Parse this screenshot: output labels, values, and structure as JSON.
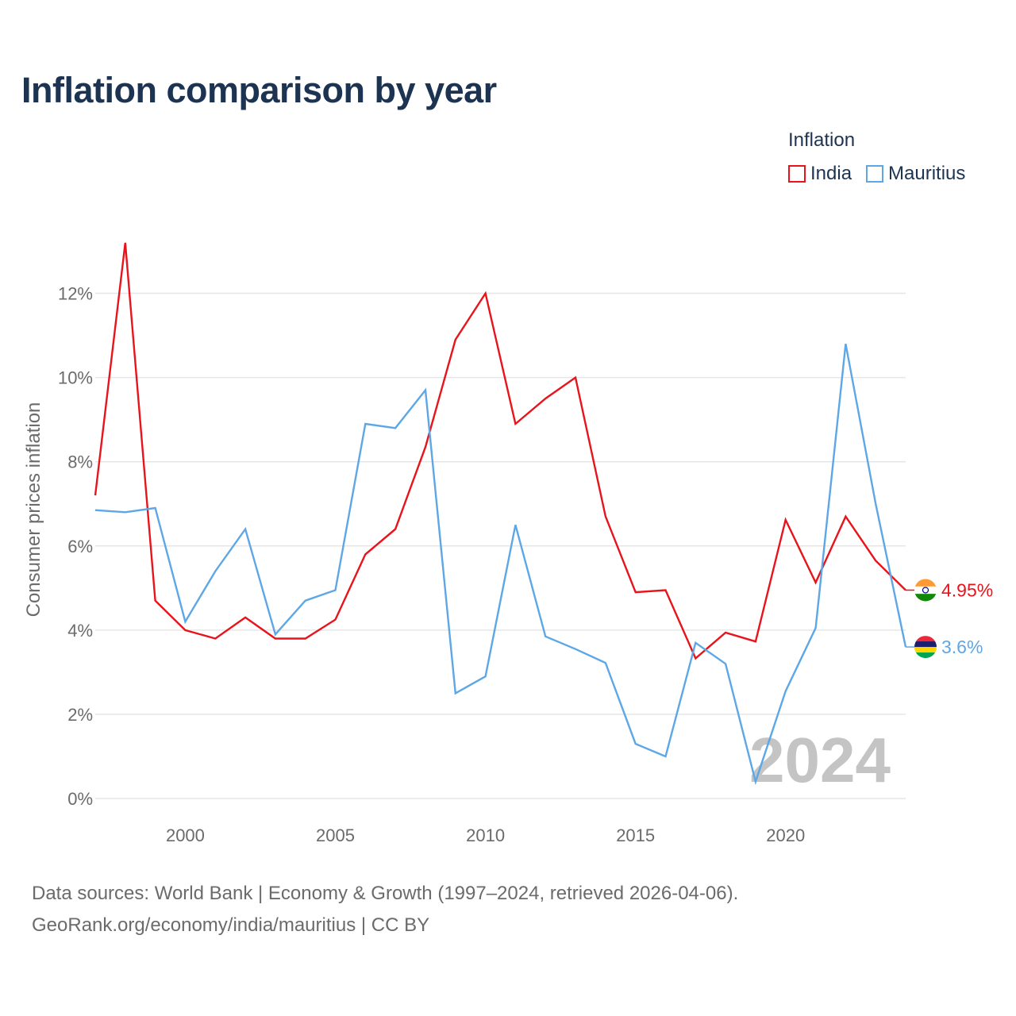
{
  "title": "Inflation comparison by year",
  "legend": {
    "title": "Inflation",
    "items": [
      {
        "label": "India",
        "color": "#e8141c"
      },
      {
        "label": "Mauritius",
        "color": "#5da7e6"
      }
    ]
  },
  "chart_data": {
    "type": "line",
    "title": "Inflation comparison by year",
    "ylabel": "Consumer prices inflation",
    "xlabel": "",
    "xlim": [
      1997,
      2024
    ],
    "ylim": [
      0,
      13.5
    ],
    "yticks": [
      0,
      2,
      4,
      6,
      8,
      10,
      12
    ],
    "ytick_labels": [
      "0%",
      "2%",
      "4%",
      "6%",
      "8%",
      "10%",
      "12%"
    ],
    "xticks": [
      2000,
      2005,
      2010,
      2015,
      2020
    ],
    "xtick_labels": [
      "2000",
      "2005",
      "2010",
      "2015",
      "2020"
    ],
    "grid": true,
    "watermark": "2024",
    "x": [
      1997,
      1998,
      1999,
      2000,
      2001,
      2002,
      2003,
      2004,
      2005,
      2006,
      2007,
      2008,
      2009,
      2010,
      2011,
      2012,
      2013,
      2014,
      2015,
      2016,
      2017,
      2018,
      2019,
      2020,
      2021,
      2022,
      2023,
      2024
    ],
    "series": [
      {
        "name": "India",
        "color": "#e8141c",
        "end_label": "4.95%",
        "flag": "india-flag",
        "values": [
          7.2,
          13.2,
          4.7,
          4.0,
          3.8,
          4.3,
          3.8,
          3.8,
          4.25,
          5.8,
          6.4,
          8.35,
          10.9,
          12.0,
          8.9,
          9.5,
          10.0,
          6.7,
          4.9,
          4.95,
          3.33,
          3.94,
          3.73,
          6.62,
          5.13,
          6.7,
          5.65,
          4.95
        ]
      },
      {
        "name": "Mauritius",
        "color": "#5da7e6",
        "end_label": "3.6%",
        "flag": "mauritius-flag",
        "values": [
          6.85,
          6.8,
          6.9,
          4.2,
          5.4,
          6.4,
          3.9,
          4.7,
          4.95,
          8.9,
          8.8,
          9.7,
          2.5,
          2.9,
          6.5,
          3.85,
          3.55,
          3.22,
          1.3,
          1.0,
          3.7,
          3.2,
          0.4,
          2.55,
          4.05,
          10.8,
          7.0,
          3.6
        ]
      }
    ]
  },
  "footer": {
    "line1": "Data sources: World Bank | Economy & Growth (1997–2024, retrieved 2026-04-06).",
    "line2": "GeoRank.org/economy/india/mauritius | CC BY"
  }
}
